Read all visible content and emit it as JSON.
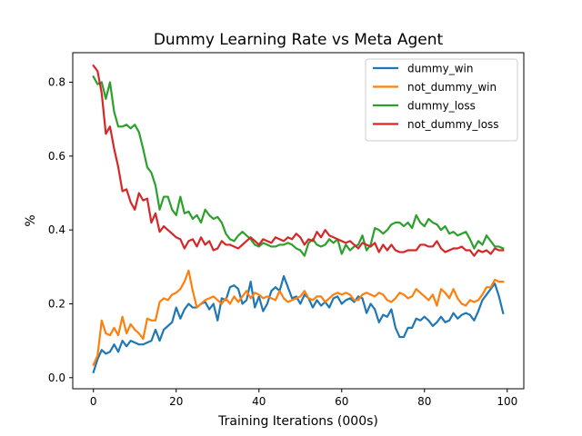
{
  "chart_data": {
    "type": "line",
    "title": "Dummy Learning Rate vs Meta Agent",
    "xlabel": "Training Iterations (000s)",
    "ylabel": "%",
    "xlim": [
      -5,
      104
    ],
    "ylim": [
      -0.03,
      0.88
    ],
    "xticks": [
      0,
      20,
      40,
      60,
      80,
      100
    ],
    "yticks": [
      0.0,
      0.2,
      0.4,
      0.6,
      0.8
    ],
    "xtick_labels": [
      "0",
      "20",
      "40",
      "60",
      "80",
      "100"
    ],
    "ytick_labels": [
      "0.0",
      "0.2",
      "0.4",
      "0.6",
      "0.8"
    ],
    "grid": false,
    "legend_position": "top-right",
    "x": [
      0,
      1,
      2,
      3,
      4,
      5,
      6,
      7,
      8,
      9,
      10,
      11,
      12,
      13,
      14,
      15,
      16,
      17,
      18,
      19,
      20,
      21,
      22,
      23,
      24,
      25,
      26,
      27,
      28,
      29,
      30,
      31,
      32,
      33,
      34,
      35,
      36,
      37,
      38,
      39,
      40,
      41,
      42,
      43,
      44,
      45,
      46,
      47,
      48,
      49,
      50,
      51,
      52,
      53,
      54,
      55,
      56,
      57,
      58,
      59,
      60,
      61,
      62,
      63,
      64,
      65,
      66,
      67,
      68,
      69,
      70,
      71,
      72,
      73,
      74,
      75,
      76,
      77,
      78,
      79,
      80,
      81,
      82,
      83,
      84,
      85,
      86,
      87,
      88,
      89,
      90,
      91,
      92,
      93,
      94,
      95,
      96,
      97,
      98,
      99
    ],
    "series": [
      {
        "name": "dummy_win",
        "color": "#1f77b4",
        "values": [
          0.015,
          0.05,
          0.075,
          0.065,
          0.07,
          0.09,
          0.07,
          0.1,
          0.085,
          0.1,
          0.095,
          0.09,
          0.09,
          0.095,
          0.1,
          0.13,
          0.1,
          0.13,
          0.14,
          0.15,
          0.19,
          0.16,
          0.185,
          0.2,
          0.19,
          0.19,
          0.2,
          0.205,
          0.185,
          0.2,
          0.155,
          0.215,
          0.21,
          0.245,
          0.25,
          0.24,
          0.2,
          0.21,
          0.26,
          0.19,
          0.22,
          0.18,
          0.2,
          0.235,
          0.245,
          0.235,
          0.275,
          0.245,
          0.215,
          0.22,
          0.2,
          0.225,
          0.215,
          0.19,
          0.21,
          0.195,
          0.205,
          0.19,
          0.215,
          0.22,
          0.2,
          0.21,
          0.215,
          0.205,
          0.22,
          0.215,
          0.175,
          0.2,
          0.185,
          0.15,
          0.17,
          0.165,
          0.185,
          0.135,
          0.11,
          0.11,
          0.135,
          0.135,
          0.16,
          0.155,
          0.165,
          0.155,
          0.14,
          0.15,
          0.165,
          0.15,
          0.155,
          0.175,
          0.16,
          0.17,
          0.175,
          0.17,
          0.155,
          0.18,
          0.21,
          0.225,
          0.24,
          0.255,
          0.22,
          0.175
        ]
      },
      {
        "name": "not_dummy_win",
        "color": "#ff7f0e",
        "values": [
          0.035,
          0.06,
          0.155,
          0.12,
          0.115,
          0.135,
          0.115,
          0.165,
          0.12,
          0.145,
          0.13,
          0.12,
          0.105,
          0.16,
          0.155,
          0.155,
          0.205,
          0.215,
          0.21,
          0.225,
          0.23,
          0.24,
          0.26,
          0.29,
          0.235,
          0.19,
          0.2,
          0.21,
          0.215,
          0.22,
          0.21,
          0.2,
          0.215,
          0.2,
          0.22,
          0.205,
          0.22,
          0.235,
          0.215,
          0.23,
          0.225,
          0.215,
          0.22,
          0.215,
          0.21,
          0.235,
          0.215,
          0.205,
          0.21,
          0.215,
          0.22,
          0.235,
          0.215,
          0.21,
          0.22,
          0.22,
          0.205,
          0.215,
          0.225,
          0.23,
          0.225,
          0.23,
          0.225,
          0.21,
          0.21,
          0.225,
          0.23,
          0.225,
          0.22,
          0.23,
          0.225,
          0.21,
          0.205,
          0.215,
          0.23,
          0.225,
          0.215,
          0.22,
          0.24,
          0.23,
          0.22,
          0.21,
          0.225,
          0.195,
          0.24,
          0.23,
          0.215,
          0.24,
          0.215,
          0.2,
          0.195,
          0.21,
          0.205,
          0.21,
          0.225,
          0.245,
          0.245,
          0.265,
          0.26,
          0.26
        ]
      },
      {
        "name": "dummy_loss",
        "color": "#2ca02c",
        "values": [
          0.815,
          0.795,
          0.8,
          0.755,
          0.8,
          0.72,
          0.68,
          0.68,
          0.685,
          0.675,
          0.685,
          0.665,
          0.62,
          0.57,
          0.555,
          0.52,
          0.455,
          0.49,
          0.49,
          0.455,
          0.44,
          0.49,
          0.445,
          0.45,
          0.43,
          0.44,
          0.42,
          0.455,
          0.44,
          0.43,
          0.435,
          0.42,
          0.39,
          0.375,
          0.37,
          0.385,
          0.395,
          0.385,
          0.375,
          0.36,
          0.355,
          0.365,
          0.36,
          0.355,
          0.355,
          0.36,
          0.36,
          0.365,
          0.36,
          0.35,
          0.345,
          0.33,
          0.365,
          0.375,
          0.36,
          0.355,
          0.36,
          0.375,
          0.365,
          0.375,
          0.335,
          0.36,
          0.345,
          0.355,
          0.36,
          0.385,
          0.345,
          0.36,
          0.405,
          0.4,
          0.39,
          0.4,
          0.415,
          0.42,
          0.42,
          0.41,
          0.42,
          0.405,
          0.44,
          0.42,
          0.41,
          0.43,
          0.42,
          0.415,
          0.4,
          0.41,
          0.39,
          0.395,
          0.385,
          0.39,
          0.395,
          0.375,
          0.35,
          0.37,
          0.36,
          0.385,
          0.37,
          0.355,
          0.355,
          0.35
        ]
      },
      {
        "name": "not_dummy_loss",
        "color": "#d62728",
        "values": [
          0.845,
          0.83,
          0.77,
          0.66,
          0.68,
          0.62,
          0.57,
          0.505,
          0.51,
          0.475,
          0.455,
          0.5,
          0.48,
          0.485,
          0.42,
          0.445,
          0.395,
          0.41,
          0.4,
          0.39,
          0.38,
          0.375,
          0.35,
          0.37,
          0.375,
          0.355,
          0.38,
          0.36,
          0.37,
          0.345,
          0.35,
          0.37,
          0.36,
          0.36,
          0.355,
          0.35,
          0.36,
          0.37,
          0.38,
          0.37,
          0.36,
          0.375,
          0.37,
          0.365,
          0.38,
          0.375,
          0.37,
          0.38,
          0.375,
          0.39,
          0.38,
          0.36,
          0.375,
          0.37,
          0.395,
          0.38,
          0.4,
          0.385,
          0.38,
          0.375,
          0.37,
          0.365,
          0.37,
          0.36,
          0.35,
          0.365,
          0.36,
          0.355,
          0.365,
          0.34,
          0.36,
          0.345,
          0.36,
          0.345,
          0.34,
          0.34,
          0.345,
          0.345,
          0.345,
          0.36,
          0.36,
          0.355,
          0.355,
          0.37,
          0.35,
          0.34,
          0.345,
          0.35,
          0.35,
          0.355,
          0.345,
          0.345,
          0.33,
          0.345,
          0.34,
          0.345,
          0.335,
          0.35,
          0.345,
          0.345
        ]
      }
    ]
  }
}
